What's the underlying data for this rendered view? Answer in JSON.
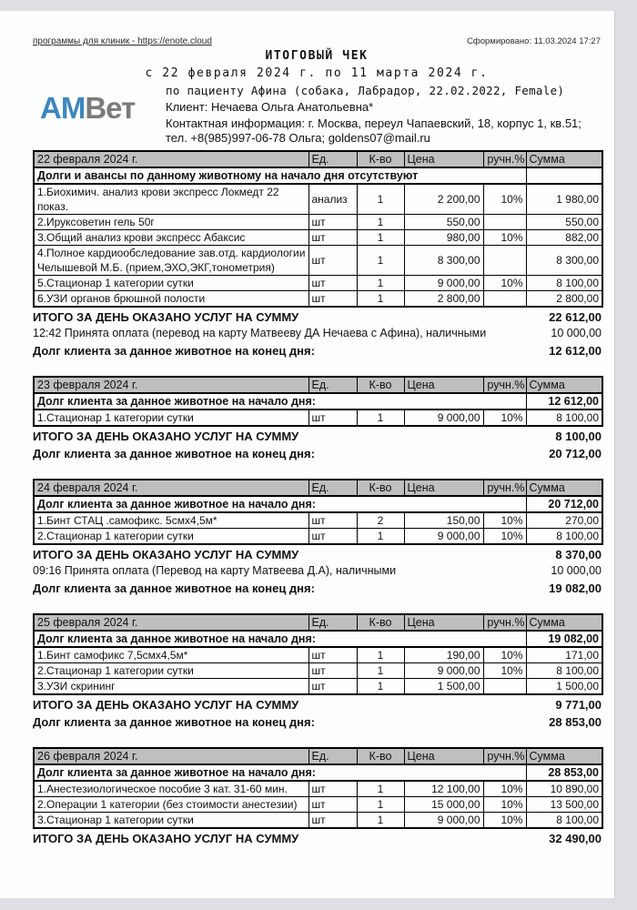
{
  "page": {
    "top_link": "программы для клиник - https://enote.cloud",
    "generated": "Сформировано: 11.03.2024 17:27",
    "title": "ИТОГОВЫЙ ЧЕК",
    "period": "с 22 февраля 2024 г. по 11 марта 2024 г.",
    "logo": {
      "part1": "АМ",
      "part2": "Вет"
    },
    "patient_line": "по пациенту Афина (собака, Лабрадор, 22.02.2022, Female)",
    "client_line": "Клиент: Нечаева Ольга Анатольевна*",
    "contact_line": "Контактная информация: г. Москва, переул Чапаевский, 18, корпус 1, кв.51; тел. +8(985)997-06-78 Ольга; goldens07@mail.ru"
  },
  "colors": {
    "table_header_bg": "#bfbfbf",
    "logo_blue": "#3c87be",
    "logo_gray": "#7b7b7b",
    "page_bg": "#dfdfe3"
  },
  "columns": [
    "Ед.",
    "К-во",
    "Цена",
    "ручн.%",
    "Сумма"
  ],
  "days": [
    {
      "date": "22 февраля 2024 г.",
      "opening": {
        "label": "Долги и авансы по данному животному на начало дня отсутствуют",
        "value": ""
      },
      "items": [
        {
          "name": "1.Биохимич. анализ крови экспресс Локмедт 22 показ.",
          "unit": "анализ",
          "qty": "1",
          "price": "2 200,00",
          "manual": "10%",
          "sum": "1 980,00"
        },
        {
          "name": "2.Ируксоветин гель 50г",
          "unit": "шт",
          "qty": "1",
          "price": "550,00",
          "manual": "",
          "sum": "550,00"
        },
        {
          "name": "3.Общий анализ крови экспресс Абаксис",
          "unit": "шт",
          "qty": "1",
          "price": "980,00",
          "manual": "10%",
          "sum": "882,00"
        },
        {
          "name": "4.Полное кардиообследование зав.отд. кардиологии Челышевой М.Б. (прием,ЭХО,ЭКГ,тонометрия)",
          "unit": "шт",
          "qty": "1",
          "price": "8 300,00",
          "manual": "",
          "sum": "8 300,00"
        },
        {
          "name": "5.Стационар 1 категории сутки",
          "unit": "шт",
          "qty": "1",
          "price": "9 000,00",
          "manual": "10%",
          "sum": "8 100,00"
        },
        {
          "name": "6.УЗИ органов брюшной полости",
          "unit": "шт",
          "qty": "1",
          "price": "2 800,00",
          "manual": "",
          "sum": "2 800,00"
        }
      ],
      "total": {
        "label": "ИТОГО ЗА ДЕНЬ ОКАЗАНО УСЛУГ НА СУММУ",
        "value": "22 612,00"
      },
      "payments": [
        {
          "text": "12:42 Принята оплата (перевод на карту Матвееву ДА Нечаева с Афина), наличными",
          "value": "10 000,00"
        }
      ],
      "closing": {
        "label": "Долг клиента за данное животное на конец дня:",
        "value": "12 612,00"
      }
    },
    {
      "date": "23 февраля 2024 г.",
      "opening": {
        "label": "Долг клиента за данное животное на начало дня:",
        "value": "12 612,00"
      },
      "items": [
        {
          "name": "1.Стационар 1 категории сутки",
          "unit": "шт",
          "qty": "1",
          "price": "9 000,00",
          "manual": "10%",
          "sum": "8 100,00"
        }
      ],
      "total": {
        "label": "ИТОГО ЗА ДЕНЬ ОКАЗАНО УСЛУГ НА СУММУ",
        "value": "8 100,00"
      },
      "payments": [],
      "closing": {
        "label": "Долг клиента за данное животное на конец дня:",
        "value": "20 712,00"
      }
    },
    {
      "date": "24 февраля 2024 г.",
      "opening": {
        "label": "Долг клиента за данное животное на начало дня:",
        "value": "20 712,00"
      },
      "items": [
        {
          "name": "1.Бинт СТАЦ .самофикс. 5смх4,5м*",
          "unit": "шт",
          "qty": "2",
          "price": "150,00",
          "manual": "10%",
          "sum": "270,00"
        },
        {
          "name": "2.Стационар 1 категории сутки",
          "unit": "шт",
          "qty": "1",
          "price": "9 000,00",
          "manual": "10%",
          "sum": "8 100,00"
        }
      ],
      "total": {
        "label": "ИТОГО ЗА ДЕНЬ ОКАЗАНО УСЛУГ НА СУММУ",
        "value": "8 370,00"
      },
      "payments": [
        {
          "text": "09:16 Принята оплата (Перевод на карту Матвеева Д.А), наличными",
          "value": "10 000,00"
        }
      ],
      "closing": {
        "label": "Долг клиента за данное животное на конец дня:",
        "value": "19 082,00"
      }
    },
    {
      "date": "25 февраля 2024 г.",
      "opening": {
        "label": "Долг клиента за данное животное на начало дня:",
        "value": "19 082,00"
      },
      "items": [
        {
          "name": "1.Бинт самофикс 7,5смх4,5м*",
          "unit": "шт",
          "qty": "1",
          "price": "190,00",
          "manual": "10%",
          "sum": "171,00"
        },
        {
          "name": "2.Стационар 1 категории сутки",
          "unit": "шт",
          "qty": "1",
          "price": "9 000,00",
          "manual": "10%",
          "sum": "8 100,00"
        },
        {
          "name": "3.УЗИ скрининг",
          "unit": "шт",
          "qty": "1",
          "price": "1 500,00",
          "manual": "",
          "sum": "1 500,00"
        }
      ],
      "total": {
        "label": "ИТОГО ЗА ДЕНЬ ОКАЗАНО УСЛУГ НА СУММУ",
        "value": "9 771,00"
      },
      "payments": [],
      "closing": {
        "label": "Долг клиента за данное животное на конец дня:",
        "value": "28 853,00"
      }
    },
    {
      "date": "26 февраля 2024 г.",
      "opening": {
        "label": "Долг клиента за данное животное на начало дня:",
        "value": "28 853,00"
      },
      "items": [
        {
          "name": "1.Анестезиологическое пособие 3 кат. 31-60 мин.",
          "unit": "шт",
          "qty": "1",
          "price": "12 100,00",
          "manual": "10%",
          "sum": "10 890,00"
        },
        {
          "name": "2.Операции 1 категории (без стоимости анестезии)",
          "unit": "шт",
          "qty": "1",
          "price": "15 000,00",
          "manual": "10%",
          "sum": "13 500,00"
        },
        {
          "name": "3.Стационар 1 категории сутки",
          "unit": "шт",
          "qty": "1",
          "price": "9 000,00",
          "manual": "10%",
          "sum": "8 100,00"
        }
      ],
      "total": {
        "label": "ИТОГО ЗА ДЕНЬ ОКАЗАНО УСЛУГ НА СУММУ",
        "value": "32 490,00"
      },
      "payments": [],
      "closing": null
    }
  ]
}
